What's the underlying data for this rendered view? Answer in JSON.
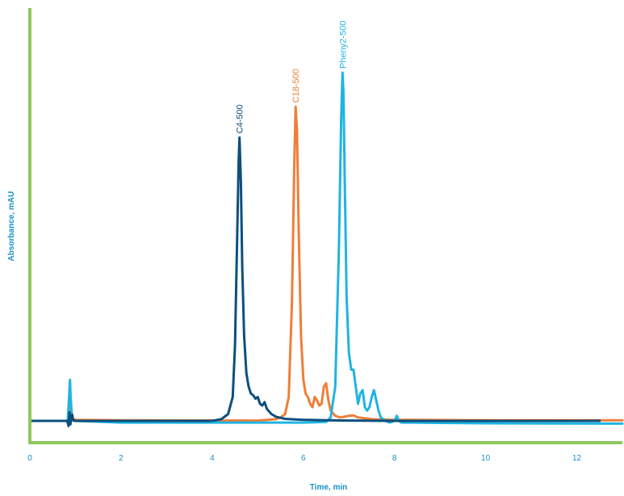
{
  "chart_data": {
    "type": "line",
    "title": "",
    "xlabel": "Time, min",
    "ylabel": "Absorbance, mAU",
    "xlim": [
      0,
      13
    ],
    "ylim": [
      -3,
      100
    ],
    "x_ticks": [
      0,
      2,
      4,
      6,
      8,
      10,
      12
    ],
    "x_tick_labels": [
      "0",
      "2",
      "4",
      "6",
      "8",
      "10",
      "12"
    ],
    "y_ticks_shown": false,
    "grid": false,
    "legend": "none",
    "colors": {
      "axis": "#8dc85f",
      "text": "#1a8fc7",
      "C4-500": "#0c4f7d",
      "C18-500": "#ef7f37",
      "Pheny2-500": "#1fb4e2"
    },
    "series": [
      {
        "name": "C4-500",
        "x": [
          0.0,
          0.82,
          0.85,
          0.87,
          0.89,
          0.91,
          0.93,
          0.95,
          1.0,
          2.0,
          4.0,
          4.2,
          4.35,
          4.45,
          4.5,
          4.55,
          4.58,
          4.6,
          4.63,
          4.66,
          4.7,
          4.75,
          4.8,
          4.85,
          4.9,
          4.95,
          5.0,
          5.05,
          5.1,
          5.15,
          5.2,
          5.3,
          5.4,
          5.6,
          6.0,
          6.5,
          7.0,
          8.0,
          10.0,
          12.5
        ],
        "y": [
          0.0,
          0.0,
          -1.5,
          2.5,
          -1.0,
          0.8,
          1.8,
          0.2,
          0.0,
          0.0,
          0.0,
          0.5,
          2.0,
          7.0,
          22.0,
          55.0,
          76.0,
          83.0,
          70.0,
          45.0,
          25.0,
          14.0,
          10.0,
          8.0,
          7.5,
          6.5,
          7.0,
          5.0,
          4.5,
          5.5,
          3.5,
          2.0,
          1.2,
          0.6,
          0.3,
          0.2,
          0.1,
          0.0,
          0.0,
          0.0
        ]
      },
      {
        "name": "C18-500",
        "x": [
          0.0,
          0.85,
          0.88,
          0.9,
          0.92,
          0.95,
          1.0,
          2.0,
          5.0,
          5.4,
          5.5,
          5.6,
          5.68,
          5.75,
          5.8,
          5.83,
          5.86,
          5.9,
          5.95,
          6.0,
          6.05,
          6.1,
          6.15,
          6.2,
          6.25,
          6.3,
          6.35,
          6.4,
          6.45,
          6.5,
          6.55,
          6.6,
          6.7,
          6.8,
          6.9,
          7.0,
          7.1,
          7.2,
          7.5,
          8.0,
          10.0,
          13.0
        ],
        "y": [
          0.0,
          0.0,
          3.0,
          6.0,
          2.0,
          0.5,
          0.3,
          0.2,
          0.1,
          0.5,
          1.0,
          2.0,
          7.0,
          35.0,
          75.0,
          92.0,
          85.0,
          55.0,
          25.0,
          12.0,
          8.0,
          7.0,
          5.0,
          4.0,
          7.0,
          6.0,
          4.5,
          5.0,
          10.0,
          11.0,
          6.0,
          3.0,
          1.5,
          1.0,
          1.2,
          1.5,
          1.6,
          1.0,
          0.5,
          0.3,
          0.2,
          0.2
        ]
      },
      {
        "name": "Pheny2-500",
        "x": [
          0.0,
          0.83,
          0.86,
          0.88,
          0.9,
          0.92,
          0.94,
          0.97,
          1.0,
          2.0,
          6.0,
          6.5,
          6.6,
          6.7,
          6.78,
          6.83,
          6.86,
          6.88,
          6.91,
          6.95,
          7.0,
          7.05,
          7.1,
          7.15,
          7.2,
          7.25,
          7.3,
          7.35,
          7.4,
          7.45,
          7.5,
          7.55,
          7.6,
          7.65,
          7.7,
          7.8,
          7.9,
          8.0,
          8.05,
          8.1,
          8.15,
          8.3,
          9.0,
          10.0,
          13.0
        ],
        "y": [
          0.0,
          0.0,
          7.0,
          12.0,
          5.0,
          1.0,
          0.3,
          0.0,
          0.0,
          -0.5,
          -0.5,
          -0.3,
          1.0,
          10.0,
          50.0,
          88.0,
          102.0,
          96.0,
          70.0,
          36.0,
          20.0,
          15.0,
          15.0,
          10.0,
          5.0,
          8.0,
          9.0,
          4.0,
          3.0,
          4.0,
          7.0,
          9.0,
          6.0,
          3.0,
          1.0,
          0.0,
          -0.5,
          0.0,
          1.5,
          0.0,
          -0.5,
          -0.5,
          -0.6,
          -0.7,
          -0.8
        ]
      }
    ],
    "annotations": [
      {
        "text": "C4-500",
        "series": "C4-500",
        "x": 4.6,
        "y": 83.0
      },
      {
        "text": "C18-500",
        "series": "C18-500",
        "x": 5.83,
        "y": 92.0
      },
      {
        "text": "Pheny2-500",
        "series": "Pheny2-500",
        "x": 6.86,
        "y": 102.0
      }
    ]
  }
}
